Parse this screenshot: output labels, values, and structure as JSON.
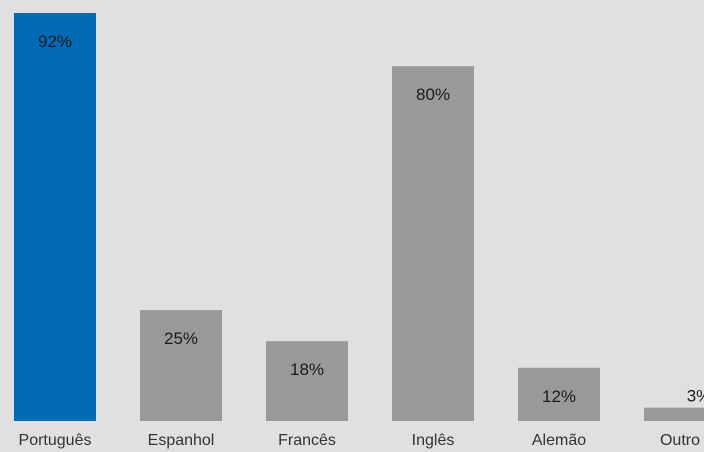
{
  "chart_data": {
    "type": "bar",
    "title": "",
    "xlabel": "",
    "ylabel": "",
    "categories": [
      "Português",
      "Espanhol",
      "Francês",
      "Inglês",
      "Alemão",
      "Outro"
    ],
    "values": [
      92,
      25,
      18,
      80,
      12,
      3
    ],
    "value_labels": [
      "92%",
      "25%",
      "18%",
      "80%",
      "12%",
      "3%"
    ],
    "ylim": [
      0,
      92
    ],
    "grid": false,
    "legend": "none",
    "colors": {
      "highlight": "#006bb6",
      "default": "#999999",
      "background": "#e0e0e0"
    },
    "highlight_index": 0
  }
}
